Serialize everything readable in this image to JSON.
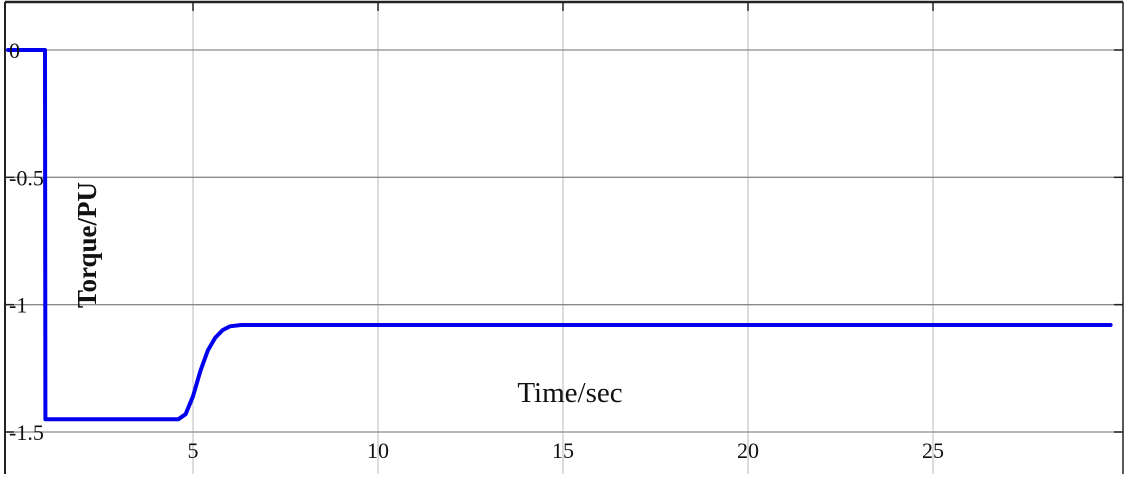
{
  "chart_data": {
    "type": "line",
    "title": "",
    "xlabel": "Time/sec",
    "ylabel": "Torque/PU",
    "xlim": [
      0,
      29.8
    ],
    "ylim": [
      -1.5,
      0
    ],
    "x_ticks": [
      5,
      10,
      15,
      20,
      25
    ],
    "x_tick_labels": [
      "5",
      "10",
      "15",
      "20",
      "25"
    ],
    "y_ticks": [
      0,
      -0.5,
      -1,
      -1.5
    ],
    "y_tick_labels": [
      "0",
      "-0.5",
      "-1",
      "-1.5"
    ],
    "grid": true,
    "line_color": "#0000ee",
    "series": [
      {
        "x": [
          0,
          1.0,
          1.01,
          4.6,
          4.8,
          5.0,
          5.2,
          5.4,
          5.6,
          5.8,
          6.0,
          6.3,
          10,
          15,
          20,
          25,
          29.8
        ],
        "y": [
          0,
          0,
          -1.45,
          -1.45,
          -1.43,
          -1.36,
          -1.26,
          -1.18,
          -1.13,
          -1.1,
          -1.085,
          -1.08,
          -1.08,
          -1.08,
          -1.08,
          -1.08,
          -1.08
        ]
      }
    ]
  }
}
